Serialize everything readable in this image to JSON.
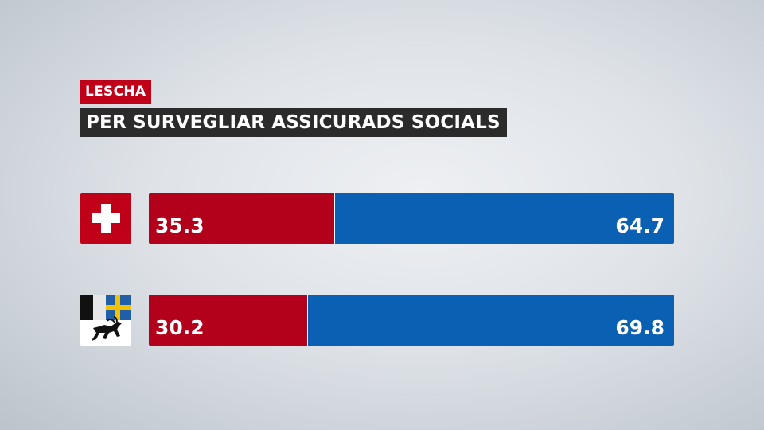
{
  "header": {
    "tag": "LESCHA",
    "title": "PER SURVEGLIAR ASSICURADS SOCIALS"
  },
  "colors": {
    "yes": "#b3001b",
    "no": "#0a61b3"
  },
  "rows": [
    {
      "flag": "swiss-flag-icon",
      "yes_label": "35.3",
      "no_label": "64.7"
    },
    {
      "flag": "graubuenden-flag-icon",
      "yes_label": "30.2",
      "no_label": "69.8"
    }
  ],
  "chart_data": {
    "type": "bar",
    "orientation": "horizontal",
    "stacked": true,
    "categories": [
      "swiss-flag",
      "graubuenden-flag"
    ],
    "series": [
      {
        "values": [
          35.3,
          30.2
        ]
      },
      {
        "values": [
          64.7,
          69.8
        ]
      }
    ],
    "title": "PER SURVEGLIAR ASSICURADS SOCIALS",
    "subtitle": "LESCHA",
    "xlim": [
      0,
      100
    ],
    "grid": false
  }
}
